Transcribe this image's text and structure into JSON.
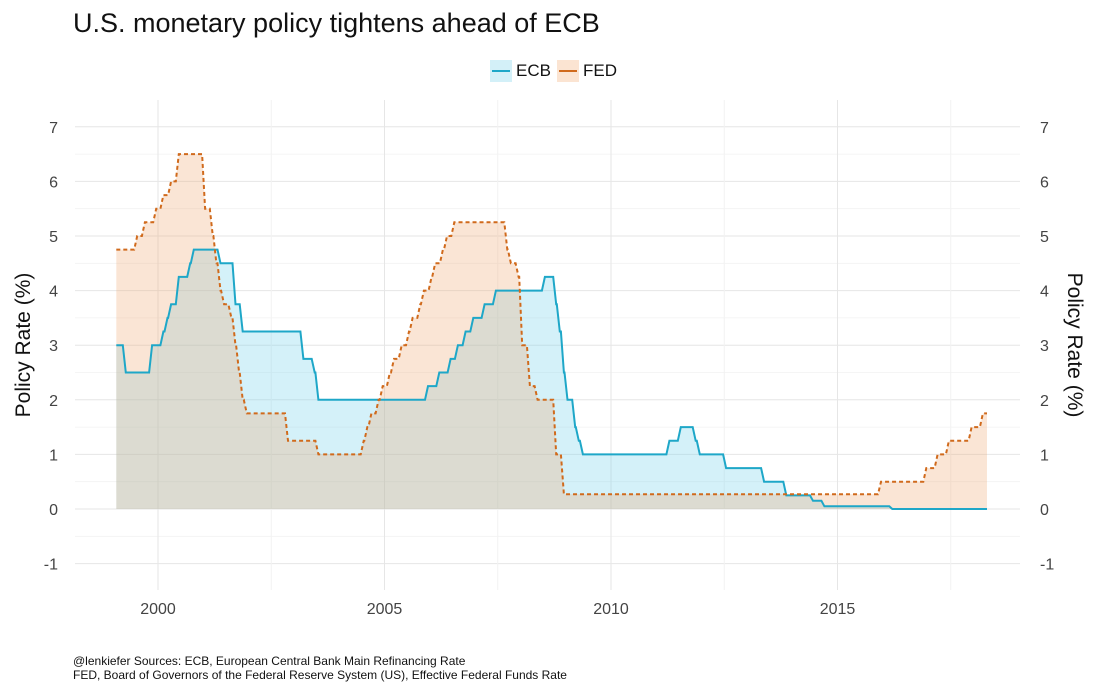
{
  "title": "U.S. monetary policy tightens ahead of ECB",
  "caption": [
    "@lenkiefer Sources: ECB, European Central Bank Main Refinancing Rate",
    "FED, Board of Governors of the Federal Reserve System (US), Effective Federal Funds Rate"
  ],
  "colors": {
    "ECB": "#1ea7c8",
    "FED": "#d06a1c",
    "ECB_fill": "#d3f0f8",
    "FED_fill": "#fbe4d2",
    "overlap_fill": "#d7dcd6"
  },
  "chart_data": {
    "type": "area",
    "title": "U.S. monetary policy tightens ahead of ECB",
    "xlabel": "",
    "ylabel": "Policy Rate (%)",
    "ylabel_right": "Policy Rate (%)",
    "xlim": [
      1998.1,
      2019.0
    ],
    "ylim": [
      -1.4,
      7.4
    ],
    "xticks": [
      2000,
      2005,
      2010,
      2015
    ],
    "yticks": [
      -1,
      0,
      1,
      2,
      3,
      4,
      5,
      6,
      7
    ],
    "grid": true,
    "legend": "top",
    "step": true,
    "series": [
      {
        "name": "ECB",
        "style": "solid",
        "points": [
          [
            1999.08,
            3.0
          ],
          [
            1999.29,
            2.5
          ],
          [
            1999.87,
            3.0
          ],
          [
            2000.12,
            3.25
          ],
          [
            2000.21,
            3.5
          ],
          [
            2000.29,
            3.75
          ],
          [
            2000.46,
            4.25
          ],
          [
            2000.71,
            4.5
          ],
          [
            2000.79,
            4.75
          ],
          [
            2001.38,
            4.5
          ],
          [
            2001.71,
            3.75
          ],
          [
            2001.87,
            3.25
          ],
          [
            2003.21,
            2.75
          ],
          [
            2003.46,
            2.5
          ],
          [
            2003.54,
            2.0
          ],
          [
            2005.96,
            2.25
          ],
          [
            2006.21,
            2.5
          ],
          [
            2006.46,
            2.75
          ],
          [
            2006.62,
            3.0
          ],
          [
            2006.79,
            3.25
          ],
          [
            2006.96,
            3.5
          ],
          [
            2007.21,
            3.75
          ],
          [
            2007.46,
            4.0
          ],
          [
            2008.54,
            4.25
          ],
          [
            2008.79,
            3.75
          ],
          [
            2008.87,
            3.25
          ],
          [
            2008.96,
            2.5
          ],
          [
            2009.04,
            2.0
          ],
          [
            2009.21,
            1.5
          ],
          [
            2009.29,
            1.25
          ],
          [
            2009.38,
            1.0
          ],
          [
            2011.29,
            1.25
          ],
          [
            2011.54,
            1.5
          ],
          [
            2011.87,
            1.25
          ],
          [
            2011.96,
            1.0
          ],
          [
            2012.54,
            0.75
          ],
          [
            2013.38,
            0.5
          ],
          [
            2013.87,
            0.25
          ],
          [
            2014.46,
            0.15
          ],
          [
            2014.71,
            0.05
          ],
          [
            2016.21,
            0.0
          ],
          [
            2018.3,
            0.0
          ]
        ]
      },
      {
        "name": "FED",
        "style": "dashed",
        "points": [
          [
            1999.08,
            4.75
          ],
          [
            1999.54,
            5.0
          ],
          [
            1999.71,
            5.25
          ],
          [
            1999.96,
            5.5
          ],
          [
            2000.12,
            5.75
          ],
          [
            2000.29,
            6.0
          ],
          [
            2000.46,
            6.5
          ],
          [
            2001.04,
            5.5
          ],
          [
            2001.21,
            5.0
          ],
          [
            2001.29,
            4.5
          ],
          [
            2001.38,
            4.0
          ],
          [
            2001.46,
            3.75
          ],
          [
            2001.62,
            3.5
          ],
          [
            2001.71,
            3.0
          ],
          [
            2001.79,
            2.5
          ],
          [
            2001.87,
            2.0
          ],
          [
            2001.96,
            1.75
          ],
          [
            2002.87,
            1.25
          ],
          [
            2003.54,
            1.0
          ],
          [
            2004.54,
            1.25
          ],
          [
            2004.62,
            1.5
          ],
          [
            2004.71,
            1.75
          ],
          [
            2004.87,
            2.0
          ],
          [
            2004.96,
            2.25
          ],
          [
            2005.12,
            2.5
          ],
          [
            2005.21,
            2.75
          ],
          [
            2005.38,
            3.0
          ],
          [
            2005.54,
            3.25
          ],
          [
            2005.62,
            3.5
          ],
          [
            2005.79,
            3.75
          ],
          [
            2005.87,
            4.0
          ],
          [
            2006.04,
            4.25
          ],
          [
            2006.12,
            4.5
          ],
          [
            2006.29,
            4.75
          ],
          [
            2006.38,
            5.0
          ],
          [
            2006.54,
            5.25
          ],
          [
            2007.71,
            4.75
          ],
          [
            2007.79,
            4.5
          ],
          [
            2007.96,
            4.25
          ],
          [
            2008.04,
            3.0
          ],
          [
            2008.21,
            2.25
          ],
          [
            2008.38,
            2.0
          ],
          [
            2008.79,
            1.0
          ],
          [
            2008.96,
            0.27
          ],
          [
            2015.96,
            0.5
          ],
          [
            2016.96,
            0.75
          ],
          [
            2017.21,
            1.0
          ],
          [
            2017.46,
            1.25
          ],
          [
            2017.96,
            1.5
          ],
          [
            2018.21,
            1.75
          ],
          [
            2018.3,
            1.75
          ]
        ]
      }
    ]
  }
}
